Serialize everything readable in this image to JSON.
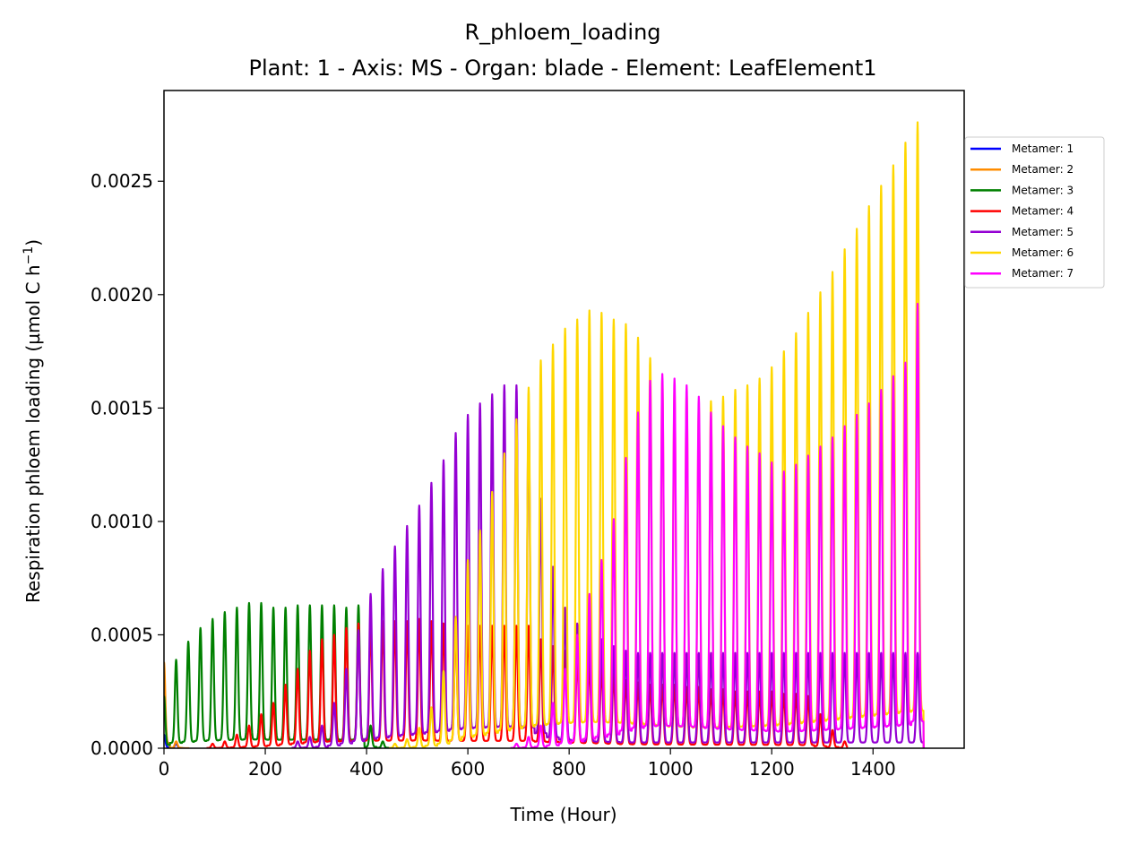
{
  "chart_data": {
    "type": "line",
    "title": "R_phloem_loading",
    "subtitle": "Plant: 1 - Axis: MS - Organ: blade - Element: LeafElement1",
    "xlabel": "Time (Hour)",
    "ylabel_main": "Respiration phloem loading (µmol C h",
    "ylabel_exp": "−1",
    "ylabel_end": ")",
    "xlim": [
      0,
      1580
    ],
    "ylim": [
      0,
      0.0029
    ],
    "xticks": [
      0,
      200,
      400,
      600,
      800,
      1000,
      1200,
      1400
    ],
    "xtick_labels": [
      "0",
      "200",
      "400",
      "600",
      "800",
      "1000",
      "1200",
      "1400"
    ],
    "yticks": [
      0,
      0.0005,
      0.001,
      0.0015,
      0.002,
      0.0025
    ],
    "ytick_labels": [
      "0.0000",
      "0.0005",
      "0.0010",
      "0.0015",
      "0.0020",
      "0.0025"
    ],
    "grid": false,
    "legend_position": "outside-right",
    "period_hours": 24,
    "series": [
      {
        "name": "Metamer: 1",
        "color": "#0000ff",
        "peaks": [
          [
            0,
            6e-05
          ],
          [
            24,
            2e-05
          ]
        ],
        "end": 40
      },
      {
        "name": "Metamer: 2",
        "color": "#ff8c00",
        "peaks": [
          [
            0,
            0.00038
          ],
          [
            24,
            3e-05
          ]
        ],
        "end": 50
      },
      {
        "name": "Metamer: 3",
        "color": "#008000",
        "peaks": [
          [
            0,
            0.00023
          ],
          [
            24,
            0.00039
          ],
          [
            48,
            0.00047
          ],
          [
            72,
            0.00053
          ],
          [
            96,
            0.00057
          ],
          [
            120,
            0.0006
          ],
          [
            144,
            0.00062
          ],
          [
            168,
            0.00064
          ],
          [
            192,
            0.00064
          ],
          [
            216,
            0.00062
          ],
          [
            240,
            0.00062
          ],
          [
            264,
            0.00063
          ],
          [
            288,
            0.00063
          ],
          [
            312,
            0.00063
          ],
          [
            336,
            0.00063
          ],
          [
            360,
            0.00062
          ],
          [
            384,
            0.00063
          ],
          [
            408,
            0.0001
          ],
          [
            432,
            3e-05
          ]
        ],
        "end": 450
      },
      {
        "name": "Metamer: 4",
        "color": "#ff0000",
        "peaks": [
          [
            96,
            2e-05
          ],
          [
            120,
            3e-05
          ],
          [
            144,
            6e-05
          ],
          [
            168,
            0.0001
          ],
          [
            192,
            0.00015
          ],
          [
            216,
            0.0002
          ],
          [
            240,
            0.00028
          ],
          [
            264,
            0.00035
          ],
          [
            288,
            0.00043
          ],
          [
            312,
            0.00048
          ],
          [
            336,
            0.0005
          ],
          [
            360,
            0.00053
          ],
          [
            384,
            0.00055
          ],
          [
            408,
            0.00055
          ],
          [
            432,
            0.00056
          ],
          [
            456,
            0.00056
          ],
          [
            480,
            0.00056
          ],
          [
            504,
            0.00057
          ],
          [
            528,
            0.00056
          ],
          [
            552,
            0.00055
          ],
          [
            576,
            0.00055
          ],
          [
            600,
            0.00054
          ],
          [
            624,
            0.00054
          ],
          [
            648,
            0.00054
          ],
          [
            672,
            0.00054
          ],
          [
            696,
            0.00054
          ],
          [
            720,
            0.00054
          ],
          [
            744,
            0.00048
          ],
          [
            768,
            0.00045
          ],
          [
            792,
            0.00043
          ],
          [
            816,
            0.0004
          ],
          [
            840,
            0.00038
          ],
          [
            864,
            0.00036
          ],
          [
            888,
            0.00033
          ],
          [
            912,
            0.0003
          ],
          [
            936,
            0.00029
          ],
          [
            960,
            0.00028
          ],
          [
            984,
            0.00028
          ],
          [
            1008,
            0.00028
          ],
          [
            1032,
            0.00027
          ],
          [
            1056,
            0.00027
          ],
          [
            1080,
            0.00026
          ],
          [
            1104,
            0.00026
          ],
          [
            1128,
            0.00025
          ],
          [
            1152,
            0.00025
          ],
          [
            1176,
            0.00025
          ],
          [
            1200,
            0.00025
          ],
          [
            1224,
            0.00024
          ],
          [
            1248,
            0.00024
          ],
          [
            1272,
            0.00023
          ],
          [
            1296,
            0.00015
          ],
          [
            1320,
            8e-05
          ],
          [
            1344,
            3e-05
          ]
        ],
        "end": 1350
      },
      {
        "name": "Metamer: 5",
        "color": "#9400d3",
        "peaks": [
          [
            264,
            3e-05
          ],
          [
            288,
            5e-05
          ],
          [
            312,
            0.0001
          ],
          [
            336,
            0.0002
          ],
          [
            360,
            0.00035
          ],
          [
            384,
            0.00052
          ],
          [
            408,
            0.00068
          ],
          [
            432,
            0.00079
          ],
          [
            456,
            0.00089
          ],
          [
            480,
            0.00098
          ],
          [
            504,
            0.00107
          ],
          [
            528,
            0.00117
          ],
          [
            552,
            0.00127
          ],
          [
            576,
            0.00139
          ],
          [
            600,
            0.00147
          ],
          [
            624,
            0.00152
          ],
          [
            648,
            0.00156
          ],
          [
            672,
            0.0016
          ],
          [
            696,
            0.0016
          ],
          [
            720,
            0.0015
          ],
          [
            744,
            0.0011
          ],
          [
            768,
            0.0008
          ],
          [
            792,
            0.00062
          ],
          [
            816,
            0.00055
          ],
          [
            840,
            0.0005
          ],
          [
            864,
            0.00048
          ],
          [
            888,
            0.00045
          ],
          [
            912,
            0.00043
          ],
          [
            936,
            0.00042
          ],
          [
            960,
            0.00042
          ],
          [
            984,
            0.00042
          ],
          [
            1008,
            0.00042
          ],
          [
            1032,
            0.00042
          ],
          [
            1056,
            0.00042
          ],
          [
            1080,
            0.00042
          ],
          [
            1104,
            0.00042
          ],
          [
            1128,
            0.00042
          ],
          [
            1152,
            0.00042
          ],
          [
            1176,
            0.00042
          ],
          [
            1200,
            0.00042
          ],
          [
            1224,
            0.00042
          ],
          [
            1248,
            0.00042
          ],
          [
            1272,
            0.00042
          ],
          [
            1296,
            0.00042
          ],
          [
            1320,
            0.00042
          ],
          [
            1344,
            0.00042
          ],
          [
            1368,
            0.00042
          ],
          [
            1392,
            0.00042
          ],
          [
            1416,
            0.00042
          ],
          [
            1440,
            0.00042
          ],
          [
            1464,
            0.00042
          ],
          [
            1488,
            0.00042
          ]
        ],
        "end": 1500
      },
      {
        "name": "Metamer: 6",
        "color": "#ffd700",
        "peaks": [
          [
            456,
            2e-05
          ],
          [
            480,
            4e-05
          ],
          [
            504,
            9e-05
          ],
          [
            528,
            0.00018
          ],
          [
            552,
            0.00034
          ],
          [
            576,
            0.00058
          ],
          [
            600,
            0.00083
          ],
          [
            624,
            0.00096
          ],
          [
            648,
            0.00113
          ],
          [
            672,
            0.0013
          ],
          [
            696,
            0.00145
          ],
          [
            720,
            0.00159
          ],
          [
            744,
            0.00171
          ],
          [
            768,
            0.00178
          ],
          [
            792,
            0.00185
          ],
          [
            816,
            0.00189
          ],
          [
            840,
            0.00193
          ],
          [
            864,
            0.00192
          ],
          [
            888,
            0.00189
          ],
          [
            912,
            0.00187
          ],
          [
            936,
            0.00181
          ],
          [
            960,
            0.00172
          ],
          [
            984,
            0.00163
          ],
          [
            1008,
            0.00158
          ],
          [
            1032,
            0.00157
          ],
          [
            1056,
            0.00151
          ],
          [
            1080,
            0.00153
          ],
          [
            1104,
            0.00155
          ],
          [
            1128,
            0.00158
          ],
          [
            1152,
            0.0016
          ],
          [
            1176,
            0.00163
          ],
          [
            1200,
            0.00168
          ],
          [
            1224,
            0.00175
          ],
          [
            1248,
            0.00183
          ],
          [
            1272,
            0.00192
          ],
          [
            1296,
            0.00201
          ],
          [
            1320,
            0.0021
          ],
          [
            1344,
            0.0022
          ],
          [
            1368,
            0.00229
          ],
          [
            1392,
            0.00239
          ],
          [
            1416,
            0.00248
          ],
          [
            1440,
            0.00257
          ],
          [
            1464,
            0.00267
          ],
          [
            1488,
            0.00276
          ]
        ],
        "end": 1500
      },
      {
        "name": "Metamer: 7",
        "color": "#ff00ff",
        "peaks": [
          [
            696,
            2e-05
          ],
          [
            720,
            5e-05
          ],
          [
            744,
            0.0001
          ],
          [
            768,
            0.0002
          ],
          [
            792,
            0.00035
          ],
          [
            816,
            0.0005
          ],
          [
            840,
            0.00068
          ],
          [
            864,
            0.00083
          ],
          [
            888,
            0.00101
          ],
          [
            912,
            0.00128
          ],
          [
            936,
            0.00148
          ],
          [
            960,
            0.00162
          ],
          [
            984,
            0.00165
          ],
          [
            1008,
            0.00163
          ],
          [
            1032,
            0.0016
          ],
          [
            1056,
            0.00155
          ],
          [
            1080,
            0.00148
          ],
          [
            1104,
            0.00142
          ],
          [
            1128,
            0.00137
          ],
          [
            1152,
            0.00133
          ],
          [
            1176,
            0.0013
          ],
          [
            1200,
            0.00126
          ],
          [
            1224,
            0.00122
          ],
          [
            1248,
            0.00125
          ],
          [
            1272,
            0.00129
          ],
          [
            1296,
            0.00133
          ],
          [
            1320,
            0.00137
          ],
          [
            1344,
            0.00142
          ],
          [
            1368,
            0.00147
          ],
          [
            1392,
            0.00152
          ],
          [
            1416,
            0.00158
          ],
          [
            1440,
            0.00164
          ],
          [
            1464,
            0.0017
          ],
          [
            1488,
            0.00196
          ]
        ],
        "end": 1500
      }
    ]
  }
}
